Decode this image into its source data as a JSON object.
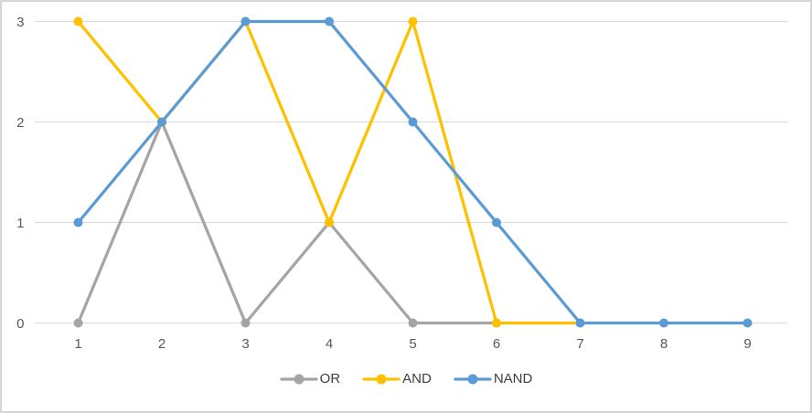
{
  "chart_data": {
    "type": "line",
    "x": [
      1,
      2,
      3,
      4,
      5,
      6,
      7,
      8,
      9
    ],
    "series": [
      {
        "name": "OR",
        "color": "#A5A5A5",
        "values": [
          0,
          2,
          0,
          1,
          0,
          0,
          null,
          null,
          null
        ]
      },
      {
        "name": "AND",
        "color": "#FFC000",
        "values": [
          3,
          2,
          3,
          1,
          3,
          0,
          0,
          null,
          null
        ]
      },
      {
        "name": "NAND",
        "color": "#5B9BD5",
        "values": [
          1,
          2,
          3,
          3,
          2,
          1,
          0,
          0,
          0
        ]
      }
    ],
    "title": "",
    "xlabel": "",
    "ylabel": "",
    "ylim": [
      0,
      3
    ],
    "yticks": [
      0,
      1,
      2,
      3
    ],
    "grid": true,
    "markers": true,
    "legend_position": "bottom",
    "colors": {
      "gridline": "#D9D9D9",
      "axis_line": "#D9D9D9",
      "tick_text": "#595959",
      "legend_text": "#404040",
      "background": "#FFFFFF",
      "border": "#D6D6D6"
    }
  }
}
